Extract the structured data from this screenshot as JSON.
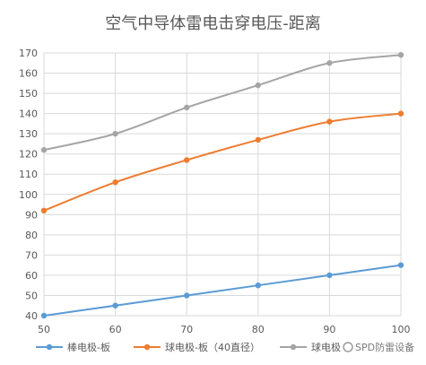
{
  "chart_data": {
    "type": "line",
    "title": "空气中导体雷电击穿电压-距离",
    "xlabel": "",
    "ylabel": "",
    "x": [
      50,
      60,
      70,
      80,
      90,
      100
    ],
    "xlim": [
      50,
      100
    ],
    "ylim": [
      40,
      170
    ],
    "y_ticks": [
      40,
      50,
      60,
      70,
      80,
      90,
      100,
      110,
      120,
      130,
      140,
      150,
      160,
      170
    ],
    "grid": true,
    "legend_position": "bottom",
    "series": [
      {
        "name": "棒电极-板",
        "color": "#5b9bd5",
        "values": [
          40,
          45,
          50,
          55,
          60,
          65
        ]
      },
      {
        "name": "球电极-板（40直径）",
        "color": "#ed7d31",
        "values": [
          92,
          106,
          117,
          127,
          136,
          140
        ]
      },
      {
        "name": "球电极",
        "color": "#a5a5a5",
        "values": [
          122,
          130,
          143,
          154,
          165,
          169
        ]
      }
    ]
  },
  "watermark": "SPD防雷设备"
}
